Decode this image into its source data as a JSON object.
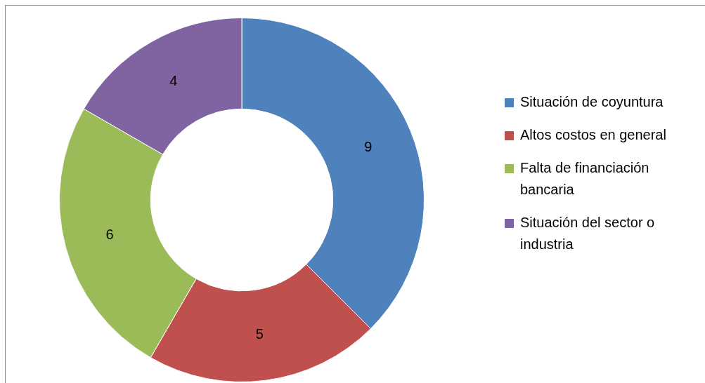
{
  "chart_data": {
    "type": "donut",
    "categories": [
      "Situación de coyuntura",
      "Altos costos en general",
      "Falta de financiación bancaria",
      "Situación del sector o industria"
    ],
    "values": [
      9,
      5,
      6,
      4
    ],
    "colors": [
      "#4f81bd",
      "#c0504d",
      "#9bbb59",
      "#8064a2"
    ],
    "legend": "right",
    "data_labels": true
  }
}
